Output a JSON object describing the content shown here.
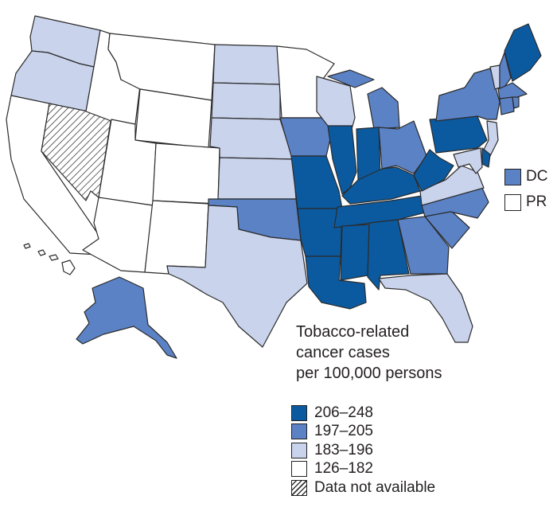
{
  "legend": {
    "title_lines": [
      "Tobacco-related",
      "cancer cases",
      "per 100,000 persons"
    ],
    "items": [
      {
        "label": "206–248",
        "color": "#0b5aa0",
        "pattern": false
      },
      {
        "label": "197–205",
        "color": "#5b82c5",
        "pattern": false
      },
      {
        "label": "183–196",
        "color": "#c9d3ec",
        "pattern": false
      },
      {
        "label": "126–182",
        "color": "#ffffff",
        "pattern": false
      },
      {
        "label": "Data not available",
        "color": "#ffffff",
        "pattern": true
      }
    ]
  },
  "territories": [
    {
      "label": "DC",
      "category": 1
    },
    {
      "label": "PR",
      "category": 3
    }
  ],
  "state_categories": {
    "WA": 2,
    "OR": 2,
    "CA": 3,
    "NV": 4,
    "ID": 3,
    "MT": 3,
    "WY": 3,
    "UT": 3,
    "AZ": 3,
    "CO": 3,
    "NM": 3,
    "ND": 2,
    "SD": 2,
    "NE": 2,
    "KS": 2,
    "OK": 1,
    "TX": 2,
    "MN": 3,
    "IA": 1,
    "MO": 0,
    "AR": 0,
    "LA": 0,
    "WI": 2,
    "IL": 0,
    "MI": 1,
    "IN": 0,
    "OH": 1,
    "KY": 0,
    "TN": 0,
    "MS": 0,
    "AL": 0,
    "GA": 1,
    "FL": 2,
    "SC": 1,
    "NC": 1,
    "VA": 2,
    "WV": 0,
    "PA": 0,
    "NY": 1,
    "ME": 0,
    "NH": 1,
    "VT": 2,
    "MA": 1,
    "RI": 1,
    "CT": 1,
    "NJ": 2,
    "DE": 0,
    "MD": 2,
    "AK": 1,
    "HI": 3
  }
}
